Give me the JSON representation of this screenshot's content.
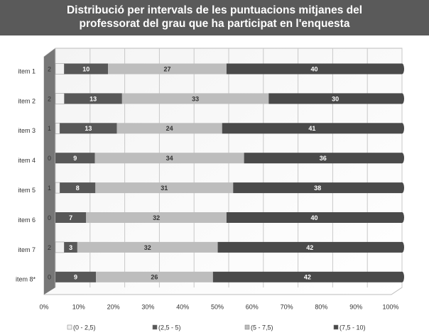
{
  "chart_data": {
    "type": "bar",
    "orientation": "horizontal",
    "stacked": "percent",
    "title": "Distribució per intervals de les puntuacions mitjanes del professorat del grau que ha participat en l'enquesta",
    "categories": [
      "item 1",
      "item 2",
      "item 3",
      "item 4",
      "item 5",
      "item 6",
      "item 7",
      "item 8*"
    ],
    "series": [
      {
        "name": "(0 - 2,5)",
        "color": "#f2f2f2",
        "values": [
          2,
          2,
          1,
          0,
          1,
          0,
          2,
          0
        ]
      },
      {
        "name": "(2,5 - 5)",
        "color": "#585858",
        "values": [
          10,
          13,
          13,
          9,
          8,
          7,
          3,
          9
        ]
      },
      {
        "name": "(5 - 7,5)",
        "color": "#bdbdbd",
        "values": [
          27,
          33,
          24,
          34,
          31,
          32,
          32,
          26
        ]
      },
      {
        "name": "(7,5 - 10)",
        "color": "#4a4a4a",
        "values": [
          40,
          30,
          41,
          36,
          38,
          40,
          42,
          42
        ]
      }
    ],
    "xlim": [
      0,
      100
    ],
    "xticks": [
      {
        "value": 0,
        "label": "0%"
      },
      {
        "value": 10,
        "label": "10%"
      },
      {
        "value": 20,
        "label": "20%"
      },
      {
        "value": 30,
        "label": "30%"
      },
      {
        "value": 40,
        "label": "40%"
      },
      {
        "value": 50,
        "label": "50%"
      },
      {
        "value": 60,
        "label": "60%"
      },
      {
        "value": 70,
        "label": "70%"
      },
      {
        "value": 80,
        "label": "80%"
      },
      {
        "value": 90,
        "label": "90%"
      },
      {
        "value": 100,
        "label": "100%"
      }
    ],
    "grid": true,
    "legend": "bottom"
  }
}
